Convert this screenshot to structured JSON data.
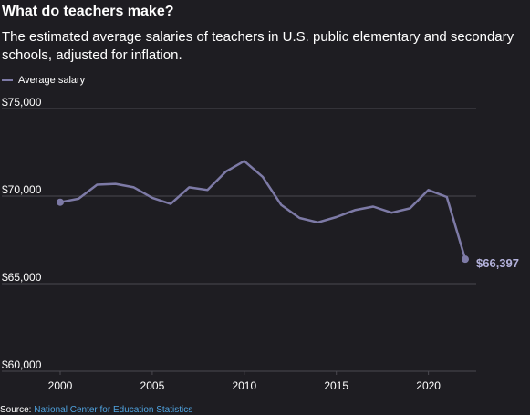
{
  "header": {
    "title": "What do teachers make?",
    "subtitle": "The estimated average salaries of teachers in U.S. public elementary and secondary schools, adjusted for inflation."
  },
  "legend": {
    "label": "Average salary"
  },
  "source": {
    "label": "Source:",
    "link_text": "National Center for Education Statistics"
  },
  "colors": {
    "line": "#7d7aa6",
    "end_label": "#b4b2dc",
    "grid": "#4a4950",
    "background": "#1e1d22"
  },
  "chart_data": {
    "type": "line",
    "x": [
      2000,
      2001,
      2002,
      2003,
      2004,
      2005,
      2006,
      2007,
      2008,
      2009,
      2010,
      2011,
      2012,
      2013,
      2014,
      2015,
      2016,
      2017,
      2018,
      2019,
      2020,
      2021,
      2022
    ],
    "series": [
      {
        "name": "Average salary",
        "values": [
          69650,
          69850,
          70650,
          70700,
          70500,
          69900,
          69550,
          70500,
          70350,
          71400,
          72000,
          71100,
          69500,
          68750,
          68500,
          68800,
          69200,
          69400,
          69050,
          69300,
          70350,
          69950,
          66397
        ]
      }
    ],
    "y_ticks": [
      60000,
      65000,
      70000,
      75000
    ],
    "y_tick_labels": [
      "$60,000",
      "$65,000",
      "$70,000",
      "$75,000"
    ],
    "x_ticks": [
      2000,
      2005,
      2010,
      2015,
      2020
    ],
    "x_tick_labels": [
      "2000",
      "2005",
      "2010",
      "2015",
      "2020"
    ],
    "ylim": [
      60000,
      75000
    ],
    "xlim": [
      2000,
      2022
    ],
    "end_label": "$66,397",
    "grid": true,
    "legend_position": "top-left"
  }
}
